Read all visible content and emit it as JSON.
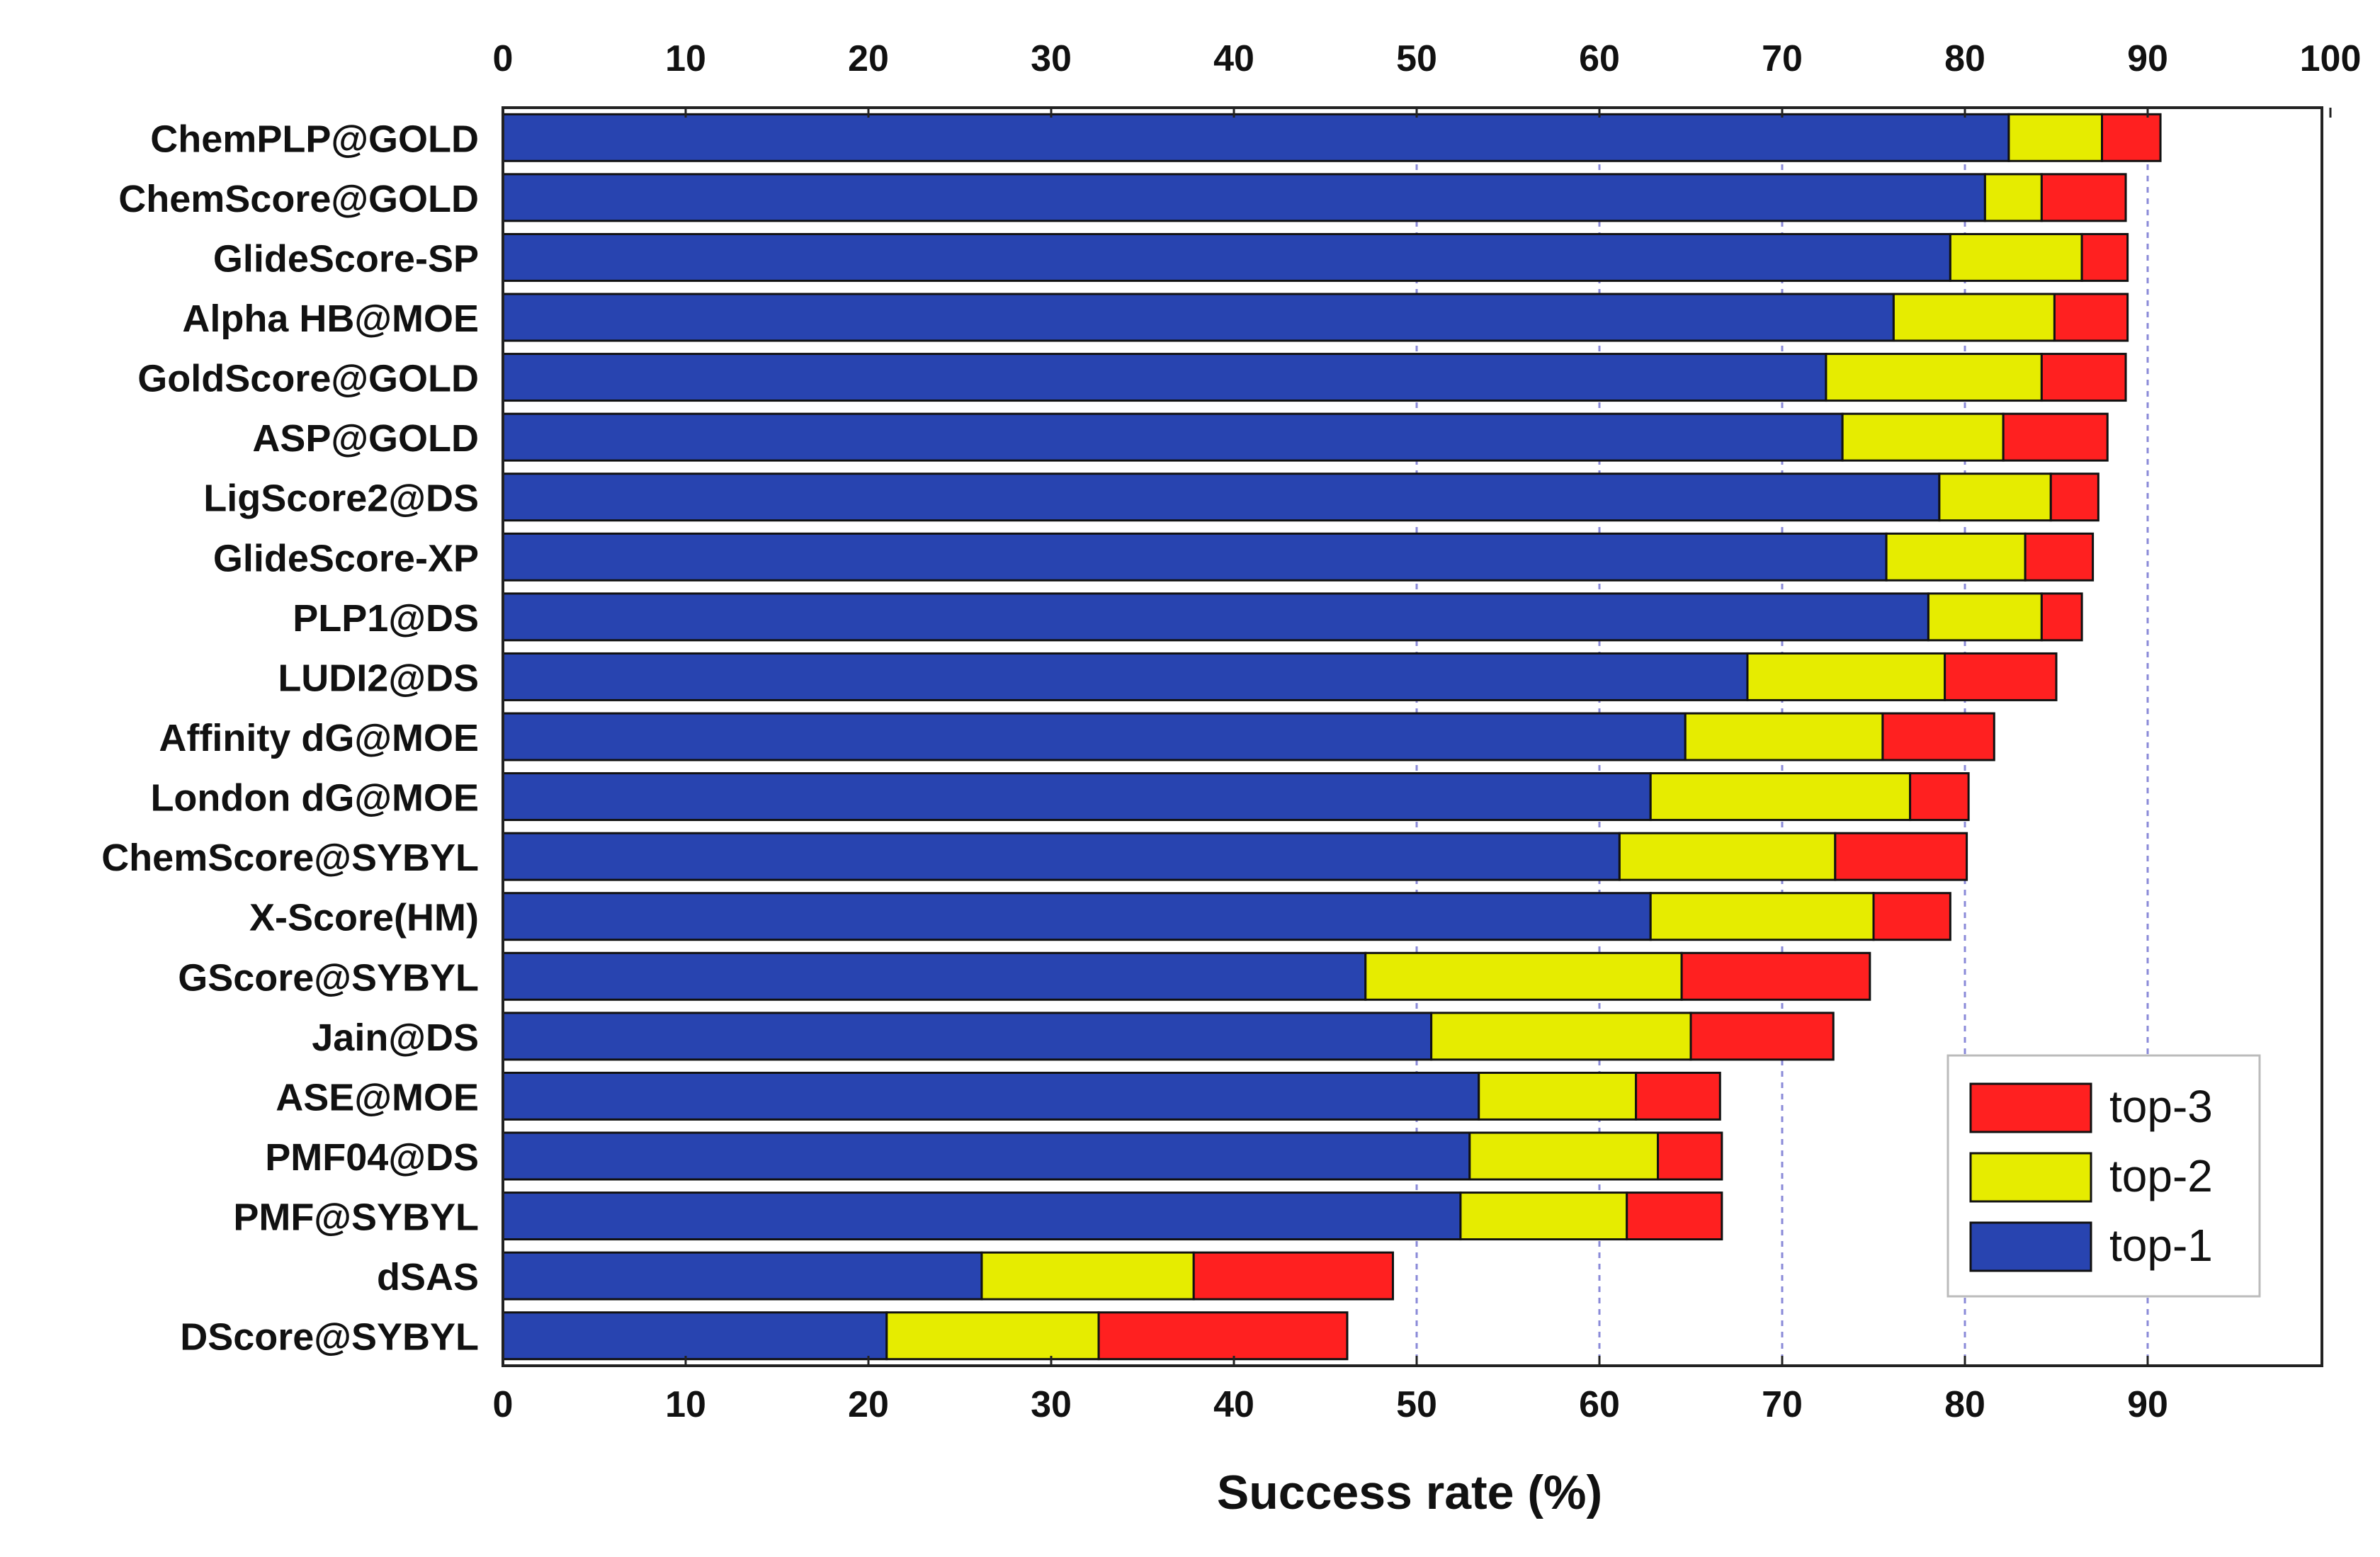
{
  "chart_data": {
    "type": "bar",
    "orientation": "horizontal",
    "stacked": true,
    "title": "",
    "xlabel": "Success rate (%)",
    "ylabel": "",
    "xlim": [
      0,
      100
    ],
    "top_axis_ticks": [
      "0",
      "10",
      "20",
      "30",
      "40",
      "50",
      "60",
      "70",
      "80",
      "90",
      "100"
    ],
    "bottom_axis_ticks": [
      "0",
      "10",
      "20",
      "30",
      "40",
      "50",
      "60",
      "70",
      "80",
      "90"
    ],
    "grid": {
      "vertical_dashed_below_legend": [
        50,
        60,
        70,
        80,
        90
      ]
    },
    "legend": {
      "position": "bottom-right",
      "entries": [
        {
          "name": "top-3",
          "color": "#ff2020"
        },
        {
          "name": "top-2",
          "color": "#e6ec00"
        },
        {
          "name": "top-1",
          "color": "#2844b0"
        }
      ]
    },
    "categories": [
      "ChemPLP@GOLD",
      "ChemScore@GOLD",
      "GlideScore-SP",
      "Alpha HB@MOE",
      "GoldScore@GOLD",
      "ASP@GOLD",
      "LigScore2@DS",
      "GlideScore-XP",
      "PLP1@DS",
      "LUDI2@DS",
      "Affinity dG@MOE",
      "London dG@MOE",
      "ChemScore@SYBYL",
      "X-Score(HM)",
      "GScore@SYBYL",
      "Jain@DS",
      "ASE@MOE",
      "PMF04@DS",
      "PMF@SYBYL",
      "dSAS",
      "DScore@SYBYL"
    ],
    "series": [
      {
        "name": "top-1",
        "color": "#2844b0",
        "values": [
          82.4,
          81.1,
          79.2,
          76.1,
          72.4,
          73.3,
          78.6,
          75.7,
          78.0,
          68.1,
          64.7,
          62.8,
          61.1,
          62.8,
          47.2,
          50.8,
          53.4,
          52.9,
          52.4,
          26.2,
          21.0
        ]
      },
      {
        "name": "top-2",
        "color": "#e6ec00",
        "values": [
          5.1,
          3.1,
          7.2,
          8.8,
          11.8,
          8.8,
          6.1,
          7.6,
          6.2,
          10.8,
          10.8,
          14.2,
          11.8,
          12.2,
          17.3,
          14.2,
          8.6,
          10.3,
          9.1,
          11.6,
          11.6
        ]
      },
      {
        "name": "top-3",
        "color": "#ff2020",
        "values": [
          3.2,
          4.6,
          2.5,
          4.0,
          4.6,
          5.7,
          2.6,
          3.7,
          2.2,
          6.1,
          6.1,
          3.2,
          7.2,
          4.2,
          10.3,
          7.8,
          4.6,
          3.5,
          5.2,
          10.9,
          13.6
        ]
      }
    ]
  }
}
